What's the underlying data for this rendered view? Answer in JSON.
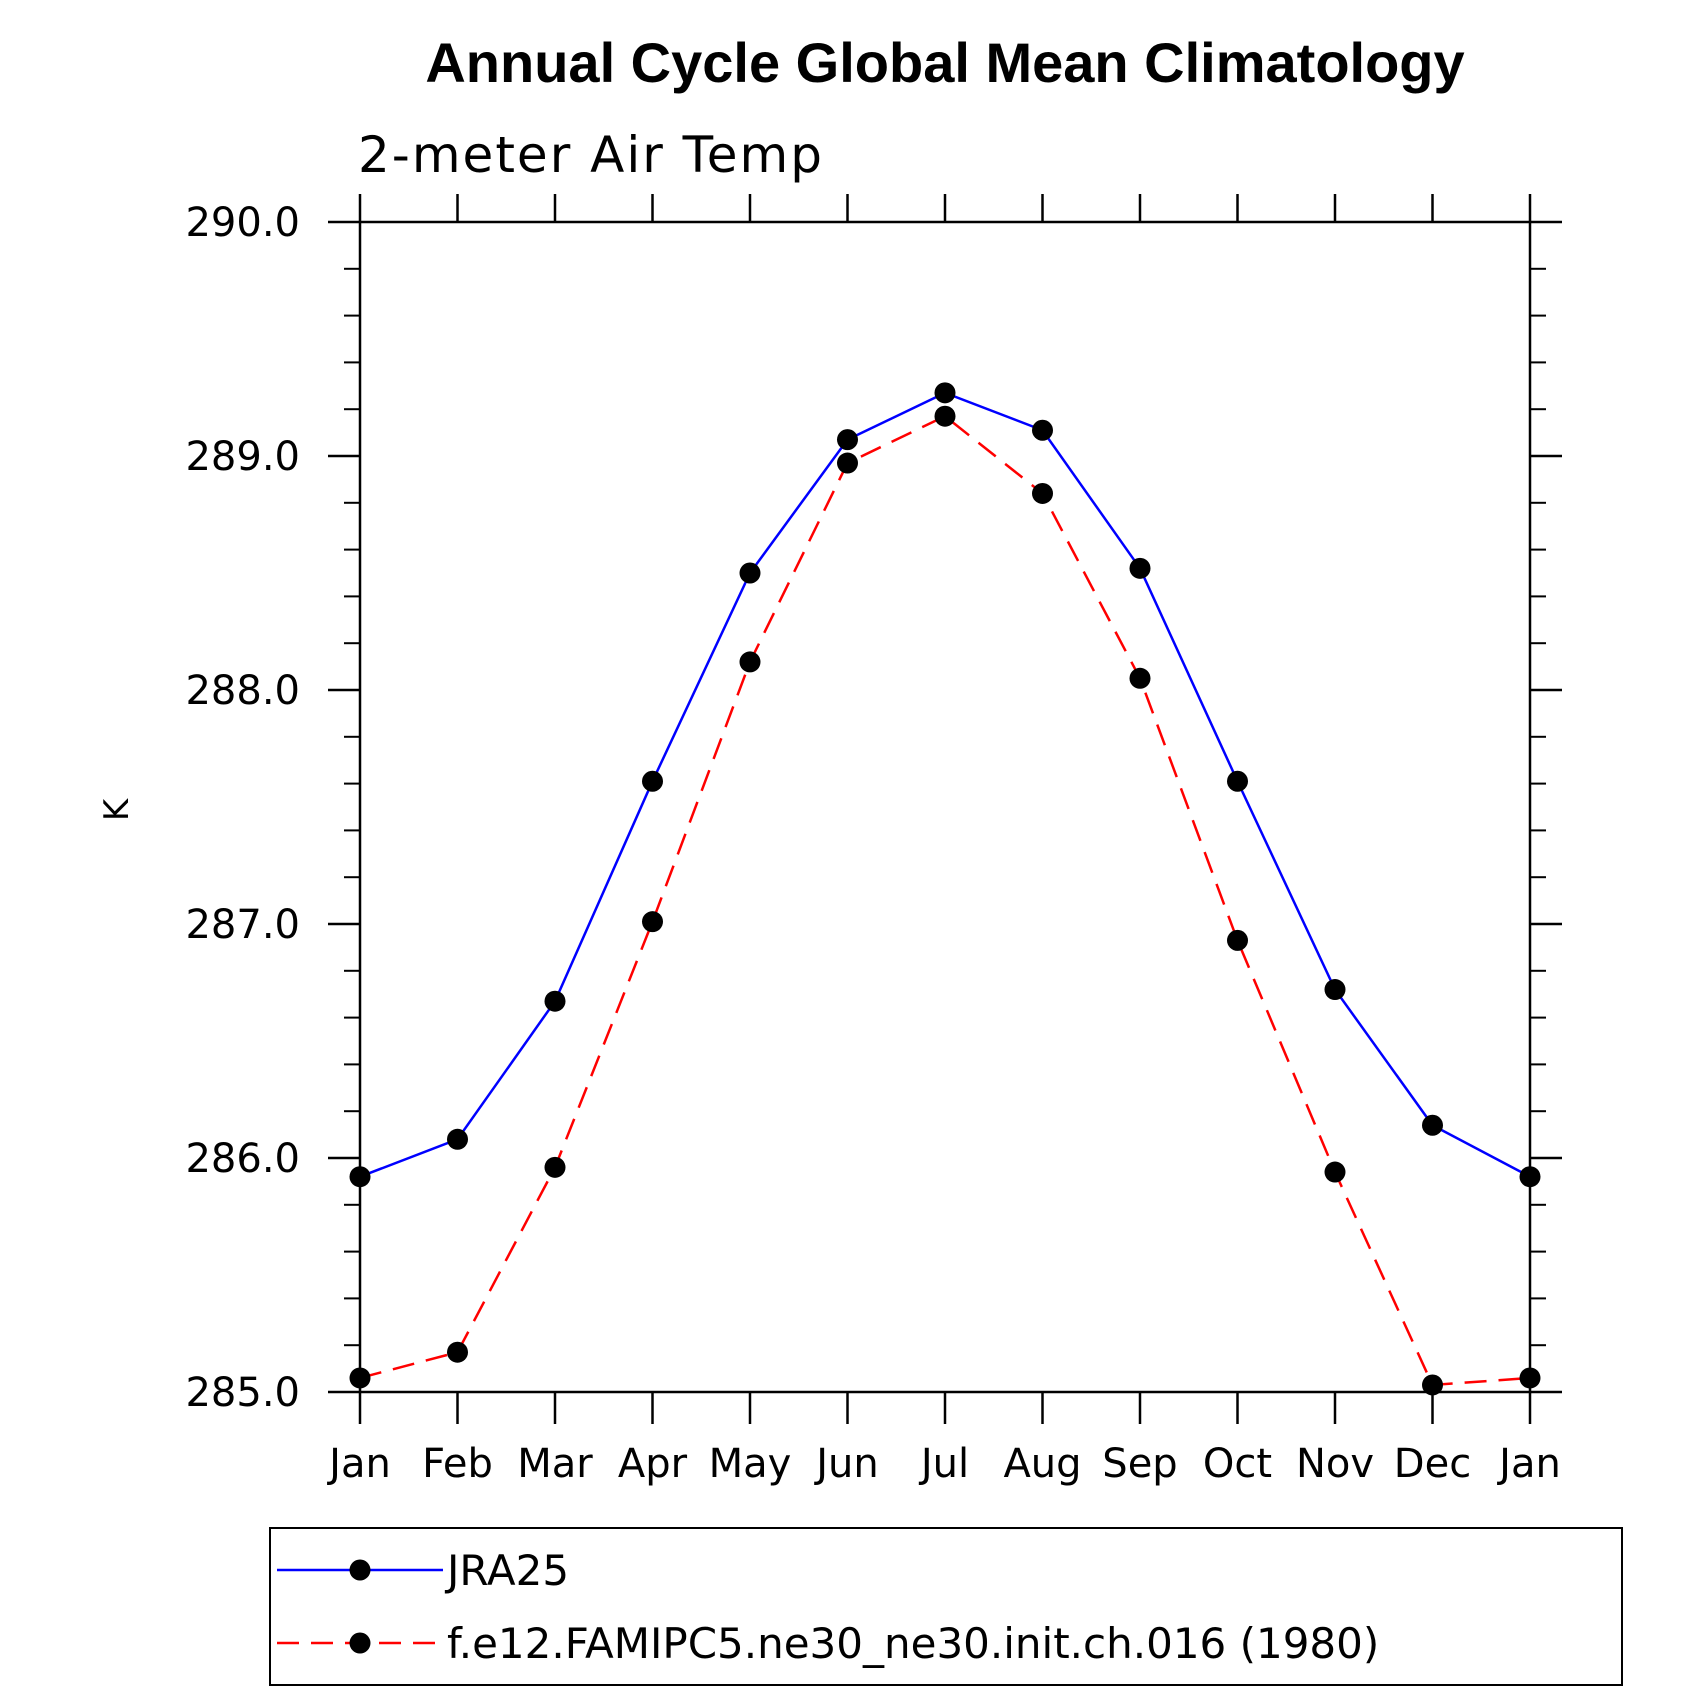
{
  "chart_data": {
    "type": "line",
    "title": "Annual Cycle Global Mean Climatology",
    "subtitle": "2-meter Air Temp",
    "xlabel": "",
    "ylabel": "K",
    "ylim": [
      285.0,
      290.0
    ],
    "yticks": [
      "285.0",
      "286.0",
      "287.0",
      "288.0",
      "289.0",
      "290.0"
    ],
    "categories": [
      "Jan",
      "Feb",
      "Mar",
      "Apr",
      "May",
      "Jun",
      "Jul",
      "Aug",
      "Sep",
      "Oct",
      "Nov",
      "Dec",
      "Jan"
    ],
    "grid": false,
    "legend_position": "bottom",
    "series": [
      {
        "name": "JRA25",
        "color": "#0000ff",
        "line_style": "solid",
        "marker": "filled-circle",
        "values": [
          285.92,
          286.08,
          286.67,
          287.61,
          288.5,
          289.07,
          289.27,
          289.11,
          288.52,
          287.61,
          286.72,
          286.14,
          285.92
        ]
      },
      {
        "name": "f.e12.FAMIPC5.ne30_ne30.init.ch.016 (1980)",
        "color": "#ff0000",
        "line_style": "dashed",
        "marker": "filled-circle",
        "values": [
          285.06,
          285.17,
          285.96,
          287.01,
          288.12,
          288.97,
          289.17,
          288.84,
          288.05,
          286.93,
          285.94,
          285.03,
          285.06
        ]
      }
    ]
  }
}
